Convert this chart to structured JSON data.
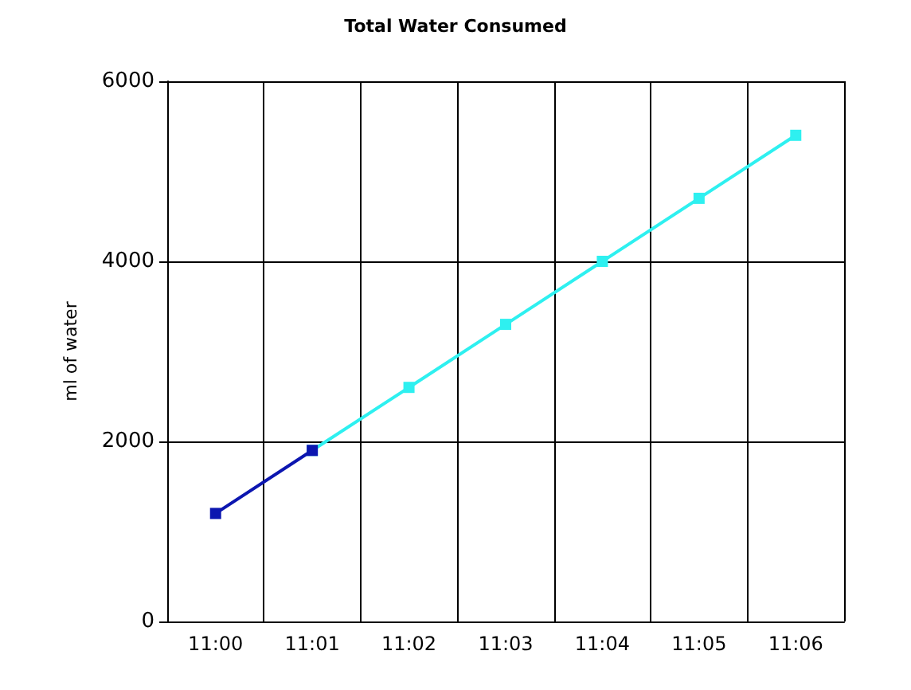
{
  "chart_data": {
    "type": "line",
    "title": "Total Water Consumed",
    "ylabel": "ml of water",
    "categories": [
      "11:00",
      "11:01",
      "11:02",
      "11:03",
      "11:04",
      "11:05",
      "11:06"
    ],
    "series": [
      {
        "color": "#0c16b0",
        "values": [
          1200,
          1900,
          null,
          null,
          null,
          null,
          null
        ]
      },
      {
        "color": "#2ef0f0",
        "values": [
          null,
          1900,
          2600,
          3300,
          4000,
          4700,
          5400
        ]
      }
    ],
    "ylim": [
      0,
      6000
    ],
    "yticks": [
      0,
      2000,
      4000,
      6000
    ],
    "grid": true,
    "marker": "square",
    "line_style": "solid"
  }
}
